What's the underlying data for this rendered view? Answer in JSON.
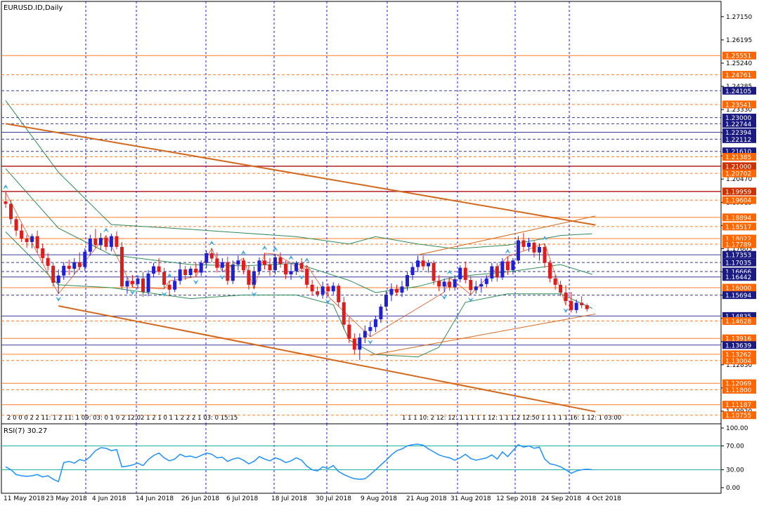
{
  "chart_data": {
    "type": "candlestick",
    "title": "EURUSD.ID,Daily",
    "ylim": [
      1.104,
      1.2778
    ],
    "y_ticks": [
      1.2715,
      1.26195,
      1.2524,
      1.24285,
      1.2333,
      1.2238,
      1.21425,
      1.2047,
      1.19515,
      1.1856,
      1.17605,
      1.1665,
      1.15695,
      1.1474,
      1.13785,
      1.1283,
      1.11875,
      1.1092
    ],
    "x_labels": [
      "11 May 2018",
      "23 May 2018",
      "4 Jun 2018",
      "14 Jun 2018",
      "26 Jun 2018",
      "6 Jul 2018",
      "18 Jul 2018",
      "30 Jul 2018",
      "9 Aug 2018",
      "21 Aug 2018",
      "31 Aug 2018",
      "12 Sep 2018",
      "24 Sep 2018",
      "4 Oct 2018"
    ],
    "price_labels": [
      {
        "value": 1.25551,
        "text": "1.25551",
        "color": "#ff6600"
      },
      {
        "value": 1.24761,
        "text": "1.24761",
        "color": "#ff6600"
      },
      {
        "value": 1.24105,
        "text": "1.24105",
        "color": "#1a1a80"
      },
      {
        "value": 1.23541,
        "text": "1.23541",
        "color": "#ff6600"
      },
      {
        "value": 1.23,
        "text": "1.23000",
        "color": "#1a1a80"
      },
      {
        "value": 1.22744,
        "text": "1.22744",
        "color": "#1a1a80"
      },
      {
        "value": 1.22394,
        "text": "1.22394",
        "color": "#1a1a80"
      },
      {
        "value": 1.22112,
        "text": "1.22112",
        "color": "#1a1a80"
      },
      {
        "value": 1.2161,
        "text": "1.21610",
        "color": "#1a1a80"
      },
      {
        "value": 1.21385,
        "text": "1.21385",
        "color": "#ff6600"
      },
      {
        "value": 1.21,
        "text": "1.21000",
        "color": "#cc3300"
      },
      {
        "value": 1.20702,
        "text": "1.20702",
        "color": "#ff6600"
      },
      {
        "value": 1.19959,
        "text": "1.19959",
        "color": "#cc3300"
      },
      {
        "value": 1.19604,
        "text": "1.19604",
        "color": "#ff6600"
      },
      {
        "value": 1.18894,
        "text": "1.18894",
        "color": "#ff6600"
      },
      {
        "value": 1.18517,
        "text": "1.18517",
        "color": "#ff6600"
      },
      {
        "value": 1.18022,
        "text": "1.18022",
        "color": "#ff6600"
      },
      {
        "value": 1.17789,
        "text": "1.17789",
        "color": "#ff6600"
      },
      {
        "value": 1.17353,
        "text": "1.17353",
        "color": "#1a1a80"
      },
      {
        "value": 1.17035,
        "text": "1.17035",
        "color": "#1a1a80"
      },
      {
        "value": 1.16666,
        "text": "1.16666",
        "color": "#1a1a80"
      },
      {
        "value": 1.16442,
        "text": "1.16442",
        "color": "#1a1a80"
      },
      {
        "value": 1.16,
        "text": "1.16000",
        "color": "#ff6600"
      },
      {
        "value": 1.15694,
        "text": "1.15694",
        "color": "#1a1a80"
      },
      {
        "value": 1.14835,
        "text": "1.14835",
        "color": "#1a1a80"
      },
      {
        "value": 1.14628,
        "text": "1.14628",
        "color": "#ff6600"
      },
      {
        "value": 1.13916,
        "text": "1.13916",
        "color": "#ff6600"
      },
      {
        "value": 1.13639,
        "text": "1.13639",
        "color": "#1a1a80"
      },
      {
        "value": 1.13262,
        "text": "1.13262",
        "color": "#ff6600"
      },
      {
        "value": 1.13004,
        "text": "1.13004",
        "color": "#ff6600"
      },
      {
        "value": 1.12069,
        "text": "1.12069",
        "color": "#ff6600"
      },
      {
        "value": 1.118,
        "text": "1.11800",
        "color": "#ff6600"
      },
      {
        "value": 1.11187,
        "text": "1.11187",
        "color": "#ff6600"
      },
      {
        "value": 1.10755,
        "text": "1.10755",
        "color": "#ff6600"
      }
    ],
    "candles": [
      [
        1.1955,
        1.1993,
        1.1928,
        1.1945
      ],
      [
        1.1945,
        1.1962,
        1.1862,
        1.1882
      ],
      [
        1.1882,
        1.1895,
        1.1812,
        1.1835
      ],
      [
        1.1835,
        1.1862,
        1.1788,
        1.1802
      ],
      [
        1.1802,
        1.1818,
        1.1765,
        1.1788
      ],
      [
        1.1788,
        1.1822,
        1.1762,
        1.1812
      ],
      [
        1.1812,
        1.1835,
        1.1742,
        1.1762
      ],
      [
        1.1762,
        1.1782,
        1.1702,
        1.1722
      ],
      [
        1.1722,
        1.1742,
        1.1672,
        1.169
      ],
      [
        1.169,
        1.1702,
        1.1605,
        1.162
      ],
      [
        1.162,
        1.1675,
        1.1575,
        1.165
      ],
      [
        1.165,
        1.1705,
        1.1632,
        1.169
      ],
      [
        1.169,
        1.1715,
        1.1652,
        1.1678
      ],
      [
        1.1678,
        1.1722,
        1.1655,
        1.1705
      ],
      [
        1.1705,
        1.1745,
        1.1672,
        1.1685
      ],
      [
        1.1685,
        1.1762,
        1.1668,
        1.1748
      ],
      [
        1.1748,
        1.1818,
        1.1732,
        1.1802
      ],
      [
        1.1802,
        1.1842,
        1.1762,
        1.1775
      ],
      [
        1.1775,
        1.1825,
        1.1755,
        1.1805
      ],
      [
        1.1805,
        1.1815,
        1.1752,
        1.1768
      ],
      [
        1.1768,
        1.1822,
        1.175,
        1.1812
      ],
      [
        1.1812,
        1.1832,
        1.1758,
        1.1768
      ],
      [
        1.1768,
        1.1788,
        1.1592,
        1.1605
      ],
      [
        1.1605,
        1.1642,
        1.1575,
        1.1628
      ],
      [
        1.1628,
        1.1652,
        1.1602,
        1.1615
      ],
      [
        1.1615,
        1.1652,
        1.1595,
        1.1638
      ],
      [
        1.1638,
        1.1665,
        1.1562,
        1.1582
      ],
      [
        1.1582,
        1.1672,
        1.1565,
        1.1658
      ],
      [
        1.1658,
        1.1702,
        1.1642,
        1.1688
      ],
      [
        1.1688,
        1.1722,
        1.1652,
        1.1665
      ],
      [
        1.1665,
        1.1682,
        1.1595,
        1.1612
      ],
      [
        1.1612,
        1.1628,
        1.1565,
        1.1592
      ],
      [
        1.1592,
        1.1645,
        1.1582,
        1.1628
      ],
      [
        1.1628,
        1.1702,
        1.1612,
        1.1675
      ],
      [
        1.1675,
        1.169,
        1.1632,
        1.1652
      ],
      [
        1.1652,
        1.1688,
        1.164,
        1.1678
      ],
      [
        1.1678,
        1.1702,
        1.1645,
        1.1662
      ],
      [
        1.1662,
        1.1712,
        1.1648,
        1.1702
      ],
      [
        1.1702,
        1.1752,
        1.1682,
        1.1742
      ],
      [
        1.1742,
        1.1762,
        1.1705,
        1.172
      ],
      [
        1.172,
        1.1745,
        1.1662,
        1.1682
      ],
      [
        1.1682,
        1.1722,
        1.1665,
        1.1705
      ],
      [
        1.1705,
        1.1728,
        1.1612,
        1.1628
      ],
      [
        1.1628,
        1.1712,
        1.1615,
        1.1695
      ],
      [
        1.1695,
        1.1732,
        1.1672,
        1.1712
      ],
      [
        1.1712,
        1.1722,
        1.1655,
        1.1672
      ],
      [
        1.1672,
        1.1692,
        1.1592,
        1.1612
      ],
      [
        1.1612,
        1.1688,
        1.1595,
        1.1668
      ],
      [
        1.1668,
        1.1725,
        1.1652,
        1.1712
      ],
      [
        1.1712,
        1.1742,
        1.1675,
        1.1695
      ],
      [
        1.1695,
        1.1722,
        1.1648,
        1.1672
      ],
      [
        1.1672,
        1.1738,
        1.1655,
        1.1725
      ],
      [
        1.1725,
        1.1745,
        1.1682,
        1.1698
      ],
      [
        1.1698,
        1.1712,
        1.1635,
        1.1655
      ],
      [
        1.1655,
        1.1702,
        1.1632,
        1.1668
      ],
      [
        1.1668,
        1.171,
        1.1652,
        1.1702
      ],
      [
        1.1702,
        1.1722,
        1.1665,
        1.1678
      ],
      [
        1.1678,
        1.1692,
        1.1598,
        1.1612
      ],
      [
        1.1612,
        1.1632,
        1.1568,
        1.1585
      ],
      [
        1.1585,
        1.1605,
        1.1562,
        1.1572
      ],
      [
        1.1572,
        1.1625,
        1.1555,
        1.1605
      ],
      [
        1.1605,
        1.1618,
        1.1565,
        1.1585
      ],
      [
        1.1585,
        1.1622,
        1.1572,
        1.1608
      ],
      [
        1.1608,
        1.1618,
        1.1522,
        1.154
      ],
      [
        1.154,
        1.1562,
        1.1428,
        1.1448
      ],
      [
        1.1448,
        1.1478,
        1.1372,
        1.139
      ],
      [
        1.139,
        1.1412,
        1.1325,
        1.1345
      ],
      [
        1.1345,
        1.1412,
        1.1302,
        1.1395
      ],
      [
        1.1395,
        1.1445,
        1.1372,
        1.1422
      ],
      [
        1.1422,
        1.1462,
        1.1398,
        1.1438
      ],
      [
        1.1438,
        1.1485,
        1.1418,
        1.147
      ],
      [
        1.147,
        1.1532,
        1.1455,
        1.1522
      ],
      [
        1.1522,
        1.1588,
        1.1505,
        1.1572
      ],
      [
        1.1572,
        1.1618,
        1.1545,
        1.1595
      ],
      [
        1.1595,
        1.1612,
        1.1568,
        1.158
      ],
      [
        1.158,
        1.1628,
        1.1562,
        1.1605
      ],
      [
        1.1605,
        1.1668,
        1.1588,
        1.1652
      ],
      [
        1.1652,
        1.1702,
        1.1632,
        1.1685
      ],
      [
        1.1685,
        1.1732,
        1.1665,
        1.1712
      ],
      [
        1.1712,
        1.1732,
        1.1672,
        1.1688
      ],
      [
        1.1688,
        1.1715,
        1.1662,
        1.1702
      ],
      [
        1.1702,
        1.1712,
        1.1612,
        1.1628
      ],
      [
        1.1628,
        1.1652,
        1.1585,
        1.1605
      ],
      [
        1.1605,
        1.1638,
        1.1582,
        1.1625
      ],
      [
        1.1625,
        1.1642,
        1.1588,
        1.1602
      ],
      [
        1.1602,
        1.1652,
        1.1588,
        1.1635
      ],
      [
        1.1635,
        1.1692,
        1.1622,
        1.1682
      ],
      [
        1.1682,
        1.1708,
        1.1618,
        1.1632
      ],
      [
        1.1632,
        1.1648,
        1.1572,
        1.159
      ],
      [
        1.159,
        1.1628,
        1.1575,
        1.1605
      ],
      [
        1.1605,
        1.1638,
        1.158,
        1.1615
      ],
      [
        1.1615,
        1.1652,
        1.1602,
        1.1638
      ],
      [
        1.1638,
        1.1702,
        1.1625,
        1.1688
      ],
      [
        1.1688,
        1.1702,
        1.1625,
        1.1642
      ],
      [
        1.1642,
        1.1722,
        1.1632,
        1.1708
      ],
      [
        1.1708,
        1.1728,
        1.1652,
        1.1672
      ],
      [
        1.1672,
        1.1722,
        1.1655,
        1.1712
      ],
      [
        1.1712,
        1.1812,
        1.1698,
        1.1795
      ],
      [
        1.1795,
        1.1825,
        1.1752,
        1.1768
      ],
      [
        1.1768,
        1.1805,
        1.1748,
        1.1785
      ],
      [
        1.1785,
        1.1792,
        1.1725,
        1.1745
      ],
      [
        1.1745,
        1.1782,
        1.1712,
        1.1768
      ],
      [
        1.1768,
        1.1782,
        1.1682,
        1.1702
      ],
      [
        1.1702,
        1.1712,
        1.1622,
        1.1638
      ],
      [
        1.1638,
        1.1652,
        1.1592,
        1.1612
      ],
      [
        1.1612,
        1.1628,
        1.1565,
        1.158
      ],
      [
        1.158,
        1.161,
        1.1528,
        1.1545
      ],
      [
        1.1545,
        1.1582,
        1.1498,
        1.1508
      ],
      [
        1.1508,
        1.1552,
        1.1495,
        1.1538
      ],
      [
        1.1538,
        1.1565,
        1.1515,
        1.1528
      ],
      [
        1.1528,
        1.1535,
        1.1502,
        1.1512
      ]
    ],
    "bb_upper": [
      [
        0,
        1.237
      ],
      [
        10,
        1.2075
      ],
      [
        20,
        1.186
      ],
      [
        35,
        1.184
      ],
      [
        45,
        1.1825
      ],
      [
        55,
        1.181
      ],
      [
        65,
        1.178
      ],
      [
        70,
        1.181
      ],
      [
        78,
        1.178
      ],
      [
        85,
        1.176
      ],
      [
        95,
        1.1775
      ],
      [
        105,
        1.1815
      ],
      [
        111,
        1.1822
      ]
    ],
    "bb_middle": [
      [
        0,
        1.209
      ],
      [
        10,
        1.1845
      ],
      [
        20,
        1.1735
      ],
      [
        35,
        1.1695
      ],
      [
        45,
        1.169
      ],
      [
        55,
        1.17
      ],
      [
        65,
        1.163
      ],
      [
        70,
        1.158
      ],
      [
        78,
        1.1605
      ],
      [
        85,
        1.1645
      ],
      [
        95,
        1.1665
      ],
      [
        105,
        1.1695
      ],
      [
        111,
        1.1655
      ]
    ],
    "bb_lower": [
      [
        0,
        1.183
      ],
      [
        10,
        1.1612
      ],
      [
        20,
        1.16
      ],
      [
        35,
        1.1555
      ],
      [
        45,
        1.157
      ],
      [
        55,
        1.157
      ],
      [
        62,
        1.153
      ],
      [
        65,
        1.1385
      ],
      [
        70,
        1.1325
      ],
      [
        78,
        1.1315
      ],
      [
        82,
        1.1355
      ],
      [
        87,
        1.154
      ],
      [
        95,
        1.1575
      ],
      [
        105,
        1.1575
      ],
      [
        111,
        1.1515
      ]
    ],
    "trendlines": [
      {
        "points": [
          [
            0,
            1.2275
          ],
          [
            111.6,
            1.1858
          ]
        ],
        "width": 2
      },
      {
        "points": [
          [
            10,
            1.1525
          ],
          [
            111.6,
            1.109
          ]
        ],
        "width": 2
      },
      {
        "points": [
          [
            69,
            1.1322
          ],
          [
            111.6,
            1.1492
          ]
        ],
        "width": 1
      },
      {
        "points": [
          [
            78,
            1.1735
          ],
          [
            111.6,
            1.1895
          ]
        ],
        "width": 1
      }
    ],
    "fractal_up": [
      0,
      19,
      31,
      39,
      45,
      49,
      51,
      54,
      57,
      84,
      95,
      102
    ],
    "fractal_down": [
      10,
      24,
      30,
      36,
      41,
      47,
      56,
      61,
      69,
      83,
      88,
      106
    ],
    "rsi_label": "RSI(7) 30.27",
    "rsi_ylim": [
      0,
      100
    ],
    "rsi_ticks": [
      "100.00",
      "70.00",
      "30.00",
      "0.00"
    ],
    "rsi_levels": [
      70,
      30
    ],
    "rsi": [
      35,
      30,
      22,
      20,
      19,
      20,
      22,
      18,
      20,
      14,
      10,
      42,
      44,
      41,
      47,
      45,
      52,
      62,
      67,
      66,
      62,
      64,
      35,
      36,
      38,
      41,
      37,
      47,
      54,
      58,
      50,
      45,
      48,
      56,
      52,
      53,
      50,
      54,
      58,
      56,
      50,
      51,
      44,
      48,
      50,
      46,
      40,
      44,
      52,
      48,
      45,
      50,
      47,
      42,
      45,
      50,
      46,
      36,
      30,
      28,
      35,
      32,
      37,
      27,
      22,
      18,
      15,
      14,
      15,
      22,
      30,
      38,
      46,
      55,
      62,
      65,
      70,
      72,
      73,
      71,
      65,
      60,
      55,
      52,
      50,
      46,
      50,
      56,
      49,
      46,
      48,
      50,
      55,
      48,
      60,
      52,
      62,
      72,
      68,
      70,
      66,
      68,
      48,
      40,
      38,
      35,
      30,
      24,
      28,
      30,
      31,
      30
    ],
    "indicator_row_left": "2 0 0 0 2 2 11: 1 2 11: 1 09: 03: 0 1 0 2 12:02 1 2 1 0 1 1 2 2 2 1 03: 0 15:15",
    "indicator_row_right": "1 1 1 10: 2 12: 12: 1 1 1 1 1 12: 1 1 1 2 12:50 1 1 1 1 1 16: 1 12: 1 03:00"
  }
}
